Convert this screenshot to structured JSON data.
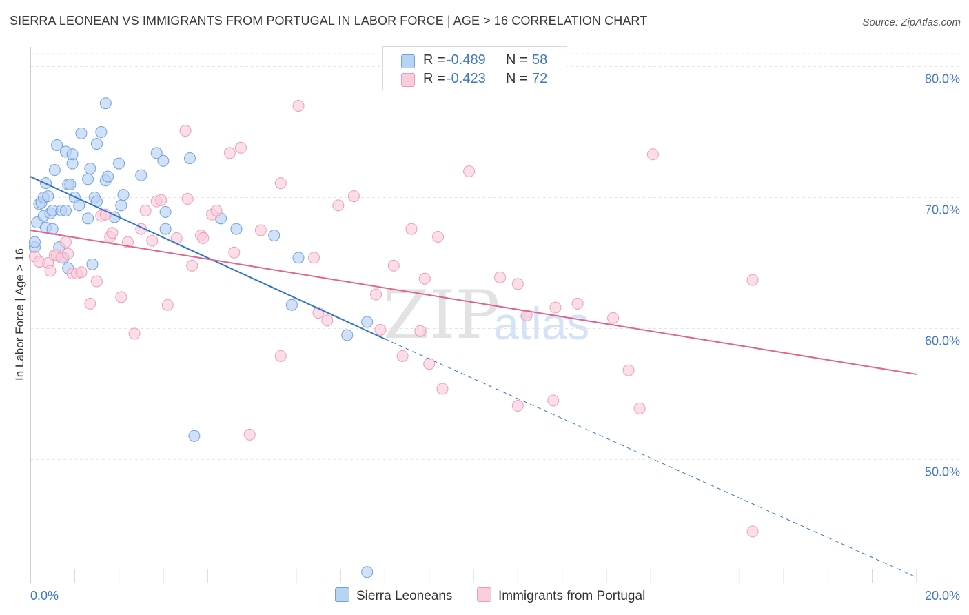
{
  "title": "SIERRA LEONEAN VS IMMIGRANTS FROM PORTUGAL IN LABOR FORCE | AGE > 16 CORRELATION CHART",
  "source": "Source: ZipAtlas.com",
  "watermark": {
    "zip": "ZIP",
    "atlas": "atlas"
  },
  "legend": {
    "r_label": "R =",
    "n_label": "N =",
    "series": [
      {
        "r": "-0.489",
        "n": "58"
      },
      {
        "r": "-0.423",
        "n": "72"
      }
    ]
  },
  "chart_data": {
    "type": "scatter",
    "title": "SIERRA LEONEAN VS IMMIGRANTS FROM PORTUGAL IN LABOR FORCE | AGE > 16 CORRELATION CHART",
    "xlabel": "",
    "ylabel": "In Labor Force | Age > 16",
    "xlim": [
      0,
      20
    ],
    "ylim": [
      40.6,
      81.5
    ],
    "x_tick_labels": [
      {
        "value": 0,
        "label": "0.0%"
      },
      {
        "value": 20,
        "label": "20.0%"
      }
    ],
    "y_tick_labels": [
      {
        "value": 50,
        "label": "50.0%"
      },
      {
        "value": 60,
        "label": "60.0%"
      },
      {
        "value": 70,
        "label": "70.0%"
      },
      {
        "value": 80,
        "label": "80.0%"
      }
    ],
    "grid": true,
    "legend_position": "top-center",
    "series": [
      {
        "name": "Sierra Leoneans",
        "color": "#6fa0e0",
        "fill": "#b9d3f5",
        "line_color": "#2f74d0",
        "trend": {
          "x0": 0,
          "y0": 71.6,
          "x1": 8.0,
          "y1": 59.2,
          "dash_to_x": 20.0,
          "dash_to_y": 41.0
        },
        "points": [
          [
            0.1,
            66.2
          ],
          [
            0.1,
            66.6
          ],
          [
            0.15,
            68.1
          ],
          [
            0.2,
            69.5
          ],
          [
            0.25,
            69.6
          ],
          [
            0.3,
            68.6
          ],
          [
            0.3,
            70.0
          ],
          [
            0.35,
            71.1
          ],
          [
            0.35,
            67.7
          ],
          [
            0.4,
            70.1
          ],
          [
            0.45,
            68.8
          ],
          [
            0.5,
            69.0
          ],
          [
            0.5,
            67.6
          ],
          [
            0.55,
            72.1
          ],
          [
            0.6,
            74.0
          ],
          [
            0.65,
            66.2
          ],
          [
            0.7,
            69.0
          ],
          [
            0.75,
            65.4
          ],
          [
            0.8,
            69.0
          ],
          [
            0.8,
            73.5
          ],
          [
            0.85,
            71.0
          ],
          [
            0.85,
            64.6
          ],
          [
            0.9,
            71.0
          ],
          [
            0.95,
            72.6
          ],
          [
            0.95,
            73.3
          ],
          [
            1.0,
            70.0
          ],
          [
            1.1,
            69.4
          ],
          [
            1.15,
            74.9
          ],
          [
            1.3,
            68.4
          ],
          [
            1.3,
            71.4
          ],
          [
            1.35,
            72.2
          ],
          [
            1.4,
            64.9
          ],
          [
            1.45,
            70.0
          ],
          [
            1.5,
            74.1
          ],
          [
            1.5,
            69.7
          ],
          [
            1.6,
            75.0
          ],
          [
            1.7,
            71.3
          ],
          [
            1.7,
            77.2
          ],
          [
            1.75,
            71.6
          ],
          [
            1.9,
            68.5
          ],
          [
            2.0,
            72.6
          ],
          [
            2.05,
            69.4
          ],
          [
            2.1,
            70.2
          ],
          [
            2.5,
            71.7
          ],
          [
            2.85,
            73.4
          ],
          [
            3.0,
            72.8
          ],
          [
            3.05,
            68.9
          ],
          [
            3.05,
            67.6
          ],
          [
            3.6,
            73.0
          ],
          [
            3.7,
            51.8
          ],
          [
            4.3,
            68.4
          ],
          [
            4.65,
            67.6
          ],
          [
            5.5,
            67.1
          ],
          [
            5.9,
            61.8
          ],
          [
            6.05,
            65.4
          ],
          [
            7.15,
            59.5
          ],
          [
            7.6,
            60.5
          ],
          [
            7.6,
            41.4
          ]
        ]
      },
      {
        "name": "Immigrants from Portugal",
        "color": "#f09cb8",
        "fill": "#f9cdda",
        "line_color": "#e0648f",
        "trend": {
          "x0": 0,
          "y0": 67.5,
          "x1": 20.0,
          "y1": 56.5
        },
        "points": [
          [
            0.1,
            65.5
          ],
          [
            0.2,
            65.1
          ],
          [
            0.4,
            65.0
          ],
          [
            0.45,
            64.4
          ],
          [
            0.55,
            65.6
          ],
          [
            0.6,
            65.6
          ],
          [
            0.7,
            65.4
          ],
          [
            0.8,
            66.6
          ],
          [
            0.85,
            65.7
          ],
          [
            0.95,
            64.2
          ],
          [
            1.05,
            64.2
          ],
          [
            1.15,
            64.3
          ],
          [
            1.35,
            61.9
          ],
          [
            1.5,
            63.6
          ],
          [
            1.6,
            68.6
          ],
          [
            1.7,
            68.7
          ],
          [
            1.8,
            67.0
          ],
          [
            1.85,
            67.3
          ],
          [
            2.05,
            62.4
          ],
          [
            2.2,
            66.6
          ],
          [
            2.35,
            59.6
          ],
          [
            2.5,
            67.6
          ],
          [
            2.6,
            69.0
          ],
          [
            2.75,
            66.7
          ],
          [
            2.85,
            69.7
          ],
          [
            2.95,
            69.8
          ],
          [
            3.1,
            61.8
          ],
          [
            3.3,
            66.9
          ],
          [
            3.5,
            75.1
          ],
          [
            3.55,
            69.9
          ],
          [
            3.65,
            64.8
          ],
          [
            3.85,
            67.1
          ],
          [
            3.9,
            66.9
          ],
          [
            4.1,
            68.7
          ],
          [
            4.2,
            69.0
          ],
          [
            4.5,
            73.4
          ],
          [
            4.6,
            65.8
          ],
          [
            4.75,
            73.8
          ],
          [
            4.95,
            51.9
          ],
          [
            5.2,
            67.5
          ],
          [
            5.65,
            71.1
          ],
          [
            5.65,
            57.9
          ],
          [
            6.05,
            77.0
          ],
          [
            6.4,
            65.4
          ],
          [
            6.5,
            61.2
          ],
          [
            6.7,
            60.6
          ],
          [
            6.95,
            69.4
          ],
          [
            7.3,
            70.1
          ],
          [
            7.8,
            62.6
          ],
          [
            7.9,
            59.9
          ],
          [
            8.2,
            64.8
          ],
          [
            8.4,
            57.9
          ],
          [
            8.6,
            67.6
          ],
          [
            8.8,
            59.8
          ],
          [
            8.9,
            63.8
          ],
          [
            9.0,
            57.3
          ],
          [
            9.2,
            67.0
          ],
          [
            9.3,
            55.4
          ],
          [
            9.9,
            72.0
          ],
          [
            10.6,
            63.9
          ],
          [
            11.0,
            63.4
          ],
          [
            11.0,
            54.1
          ],
          [
            11.2,
            61.0
          ],
          [
            11.8,
            54.5
          ],
          [
            11.85,
            61.6
          ],
          [
            12.35,
            61.9
          ],
          [
            13.15,
            60.8
          ],
          [
            13.5,
            56.8
          ],
          [
            13.75,
            53.9
          ],
          [
            14.05,
            73.3
          ],
          [
            16.3,
            63.7
          ],
          [
            16.3,
            44.5
          ]
        ]
      }
    ]
  }
}
